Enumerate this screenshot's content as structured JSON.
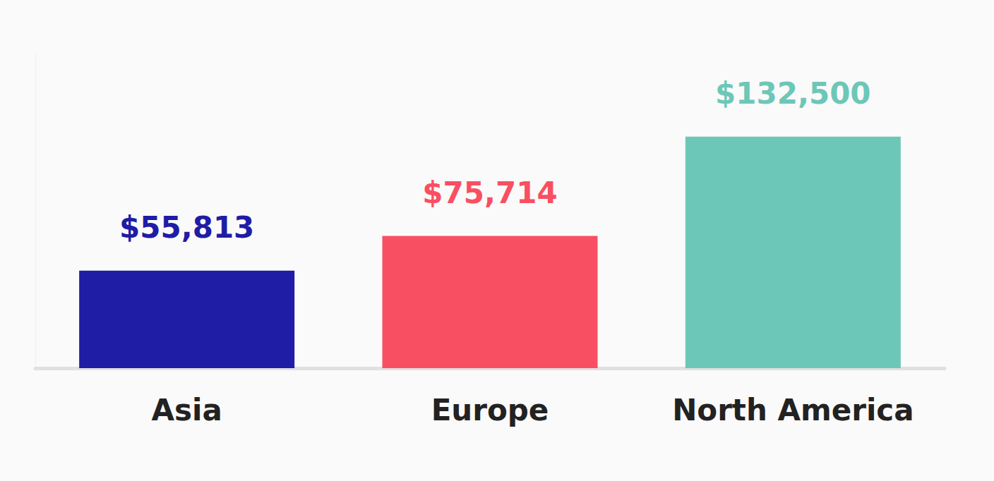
{
  "chart_data": {
    "type": "bar",
    "categories": [
      "Asia",
      "Europe",
      "North America"
    ],
    "values": [
      55813,
      75714,
      132500
    ],
    "value_labels": [
      "$55,813",
      "$75,714",
      "$132,500"
    ],
    "colors": [
      "#1f1ca6",
      "#f94f62",
      "#6dc7b8"
    ],
    "ylim": [
      0,
      180000
    ],
    "grid": false,
    "data_labels": true,
    "tick_labels": "x"
  }
}
